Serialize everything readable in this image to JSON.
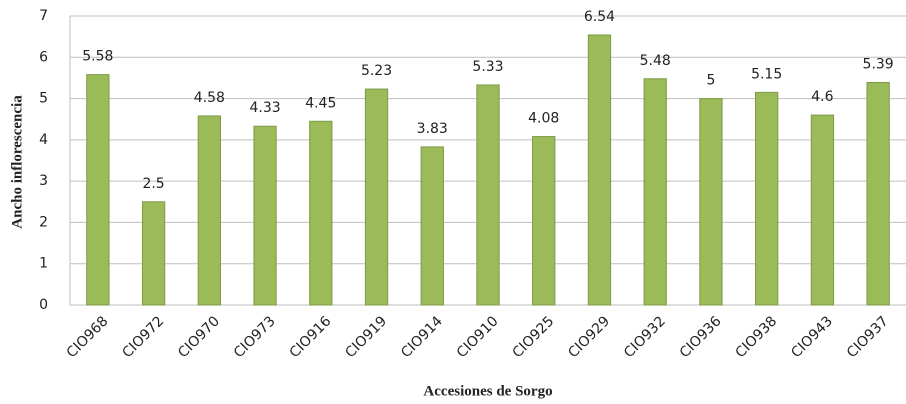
{
  "chart_data": {
    "type": "bar",
    "x_label": "Accesiones de Sorgo",
    "y_label": "Ancho inflorescencia",
    "categories": [
      "CIO968",
      "CIO972",
      "CIO970",
      "CIO973",
      "CIO916",
      "CIO919",
      "CIO914",
      "CIO910",
      "CIO925",
      "CIO929",
      "CIO932",
      "CIO936",
      "CIO938",
      "CIO943",
      "CIO937"
    ],
    "values": [
      5.58,
      2.5,
      4.58,
      4.33,
      4.45,
      5.23,
      3.83,
      5.33,
      4.08,
      6.54,
      5.48,
      5,
      5.15,
      4.6,
      5.39
    ],
    "color": "#9bbb59",
    "ylim": [
      0,
      7
    ],
    "yticks": [
      0,
      1,
      2,
      3,
      4,
      5,
      6,
      7
    ],
    "grid": true
  }
}
